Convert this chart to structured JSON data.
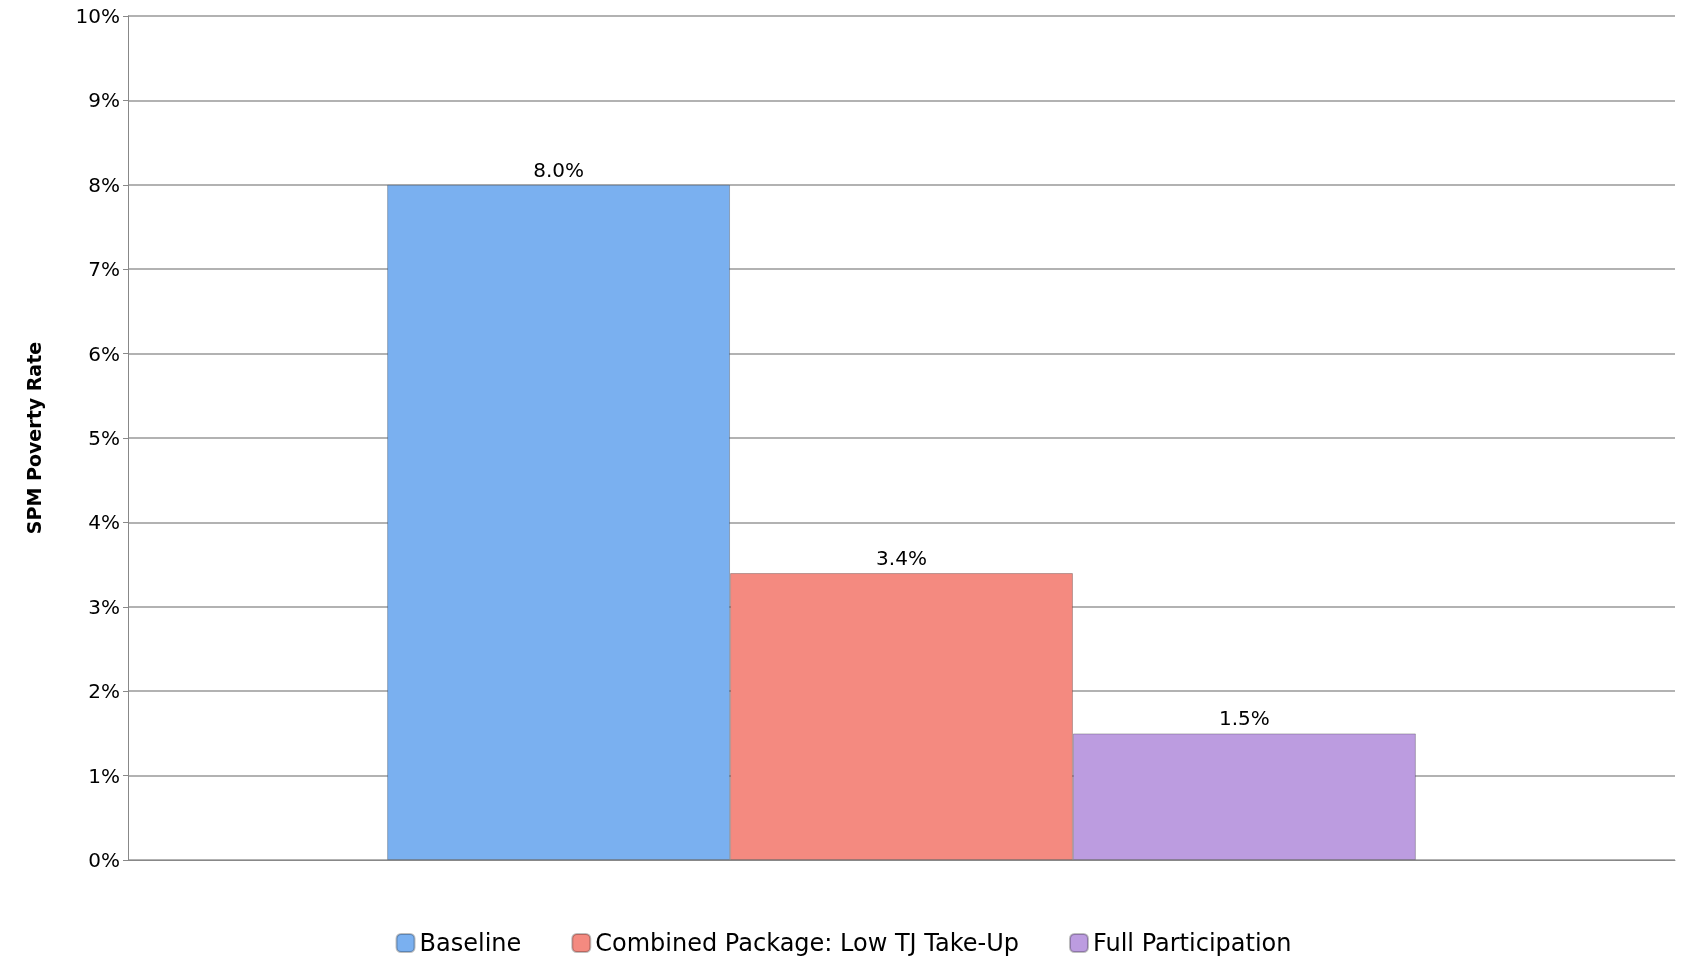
{
  "chart_data": {
    "type": "bar",
    "ylabel": "SPM Poverty Rate",
    "categories": [
      null
    ],
    "series": [
      {
        "name": "Baseline",
        "color": "#7ab0f0",
        "values": [
          8.0
        ],
        "value_labels": [
          "8.0%"
        ]
      },
      {
        "name": "Combined Package: Low TJ Take-Up",
        "color": "#f48a80",
        "values": [
          3.4
        ],
        "value_labels": [
          "3.4%"
        ]
      },
      {
        "name": "Full Participation",
        "color": "#bc9ce0",
        "values": [
          1.5
        ],
        "value_labels": [
          "1.5%"
        ]
      }
    ],
    "ylim": [
      0,
      10
    ],
    "yticks": [
      {
        "value": 0,
        "label": "0%"
      },
      {
        "value": 1,
        "label": "1%"
      },
      {
        "value": 2,
        "label": "2%"
      },
      {
        "value": 3,
        "label": "3%"
      },
      {
        "value": 4,
        "label": "4%"
      },
      {
        "value": 5,
        "label": "5%"
      },
      {
        "value": 6,
        "label": "6%"
      },
      {
        "value": 7,
        "label": "7%"
      },
      {
        "value": 8,
        "label": "8%"
      },
      {
        "value": 9,
        "label": "9%"
      },
      {
        "value": 10,
        "label": "10%"
      }
    ],
    "grid": "y",
    "legend": "bottom"
  }
}
